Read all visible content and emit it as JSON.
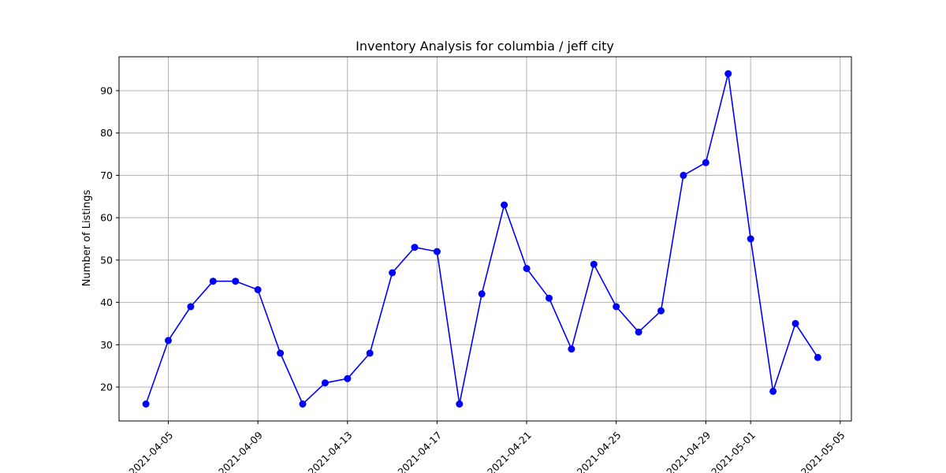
{
  "chart_data": {
    "type": "line",
    "title": "Inventory Analysis for columbia / jeff city",
    "xlabel": "",
    "ylabel": "Number of Listings",
    "x": [
      "2021-04-04",
      "2021-04-05",
      "2021-04-06",
      "2021-04-07",
      "2021-04-08",
      "2021-04-09",
      "2021-04-10",
      "2021-04-11",
      "2021-04-12",
      "2021-04-13",
      "2021-04-14",
      "2021-04-15",
      "2021-04-16",
      "2021-04-17",
      "2021-04-18",
      "2021-04-19",
      "2021-04-20",
      "2021-04-21",
      "2021-04-22",
      "2021-04-23",
      "2021-04-24",
      "2021-04-25",
      "2021-04-26",
      "2021-04-27",
      "2021-04-28",
      "2021-04-29",
      "2021-04-30",
      "2021-05-01",
      "2021-05-02",
      "2021-05-03",
      "2021-05-04"
    ],
    "series": [
      {
        "values": [
          16,
          31,
          39,
          45,
          45,
          43,
          28,
          16,
          21,
          22,
          28,
          47,
          53,
          52,
          16,
          42,
          63,
          48,
          41,
          29,
          49,
          39,
          33,
          38,
          70,
          73,
          94,
          55,
          19,
          35,
          27
        ],
        "color": "#0000ff",
        "marker": "circle"
      }
    ],
    "xticks": [
      "2021-04-05",
      "2021-04-09",
      "2021-04-13",
      "2021-04-17",
      "2021-04-21",
      "2021-04-25",
      "2021-04-29",
      "2021-05-01",
      "2021-05-05"
    ],
    "yticks": [
      "20",
      "30",
      "40",
      "50",
      "60",
      "70",
      "80",
      "90"
    ],
    "xlim": [
      "2021-04-02 19:12",
      "2021-05-05 12:00"
    ],
    "ylim": [
      12,
      98
    ],
    "grid": true,
    "colors": {
      "line": "#0000ff",
      "grid": "#b0b0b0",
      "axis": "#000000"
    }
  }
}
